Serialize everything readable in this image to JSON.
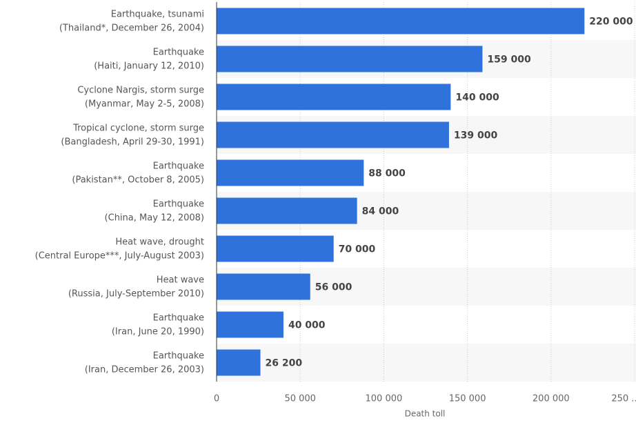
{
  "chart_data": {
    "type": "bar",
    "orientation": "horizontal",
    "categories": [
      [
        "Earthquake, tsunami",
        "(Thailand*, December 26, 2004)"
      ],
      [
        "Earthquake",
        "(Haiti, January 12, 2010)"
      ],
      [
        "Cyclone Nargis, storm surge",
        "(Myanmar, May 2-5, 2008)"
      ],
      [
        "Tropical cyclone, storm surge",
        "(Bangladesh, April 29-30, 1991)"
      ],
      [
        "Earthquake",
        "(Pakistan**, October 8, 2005)"
      ],
      [
        "Earthquake",
        "(China, May 12, 2008)"
      ],
      [
        "Heat wave, drought",
        "(Central Europe***, July-August 2003)"
      ],
      [
        "Heat wave",
        "(Russia, July-September 2010)"
      ],
      [
        "Earthquake",
        "(Iran, June 20, 1990)"
      ],
      [
        "Earthquake",
        "(Iran, December 26, 2003)"
      ]
    ],
    "values": [
      220000,
      159000,
      140000,
      139000,
      88000,
      84000,
      70000,
      56000,
      40000,
      26200
    ],
    "value_labels": [
      "220 000",
      "159 000",
      "140 000",
      "139 000",
      "88 000",
      "84 000",
      "70 000",
      "56 000",
      "40 000",
      "26 200"
    ],
    "color": "#2f72dc",
    "xlabel": "Death toll",
    "xlim": [
      0,
      250000
    ],
    "xticks": [
      0,
      {
        "value": 50000,
        "label": "50 000"
      },
      {
        "value": 100000,
        "label": "100 000"
      },
      {
        "value": 150000,
        "label": "150 000"
      },
      {
        "value": 200000,
        "label": "200 000"
      },
      {
        "value": 250000,
        "label": "250 ..."
      }
    ],
    "grid": true
  }
}
